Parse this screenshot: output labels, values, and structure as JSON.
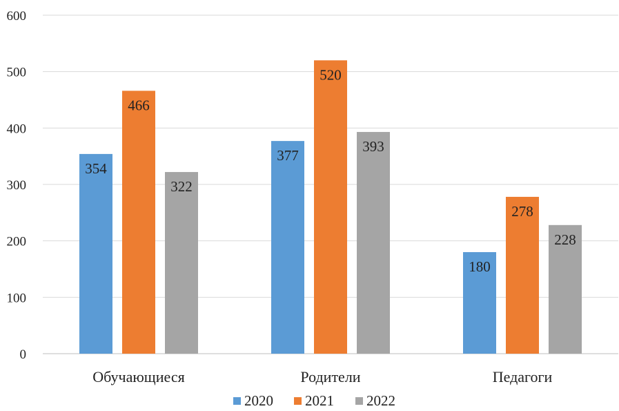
{
  "chart_data": {
    "type": "bar",
    "categories": [
      "Обучающиеся",
      "Родители",
      "Педагоги"
    ],
    "series": [
      {
        "name": "2020",
        "values": [
          354,
          377,
          180
        ],
        "color": "#5b9bd5"
      },
      {
        "name": "2021",
        "values": [
          466,
          520,
          278
        ],
        "color": "#ed7d31"
      },
      {
        "name": "2022",
        "values": [
          322,
          393,
          228
        ],
        "color": "#a5a5a5"
      }
    ],
    "yticks": [
      "0",
      "100",
      "200",
      "300",
      "400",
      "500",
      "600"
    ],
    "ylim": [
      0,
      600
    ],
    "grid": true,
    "legend": "bottom-center",
    "data_labels": true
  }
}
